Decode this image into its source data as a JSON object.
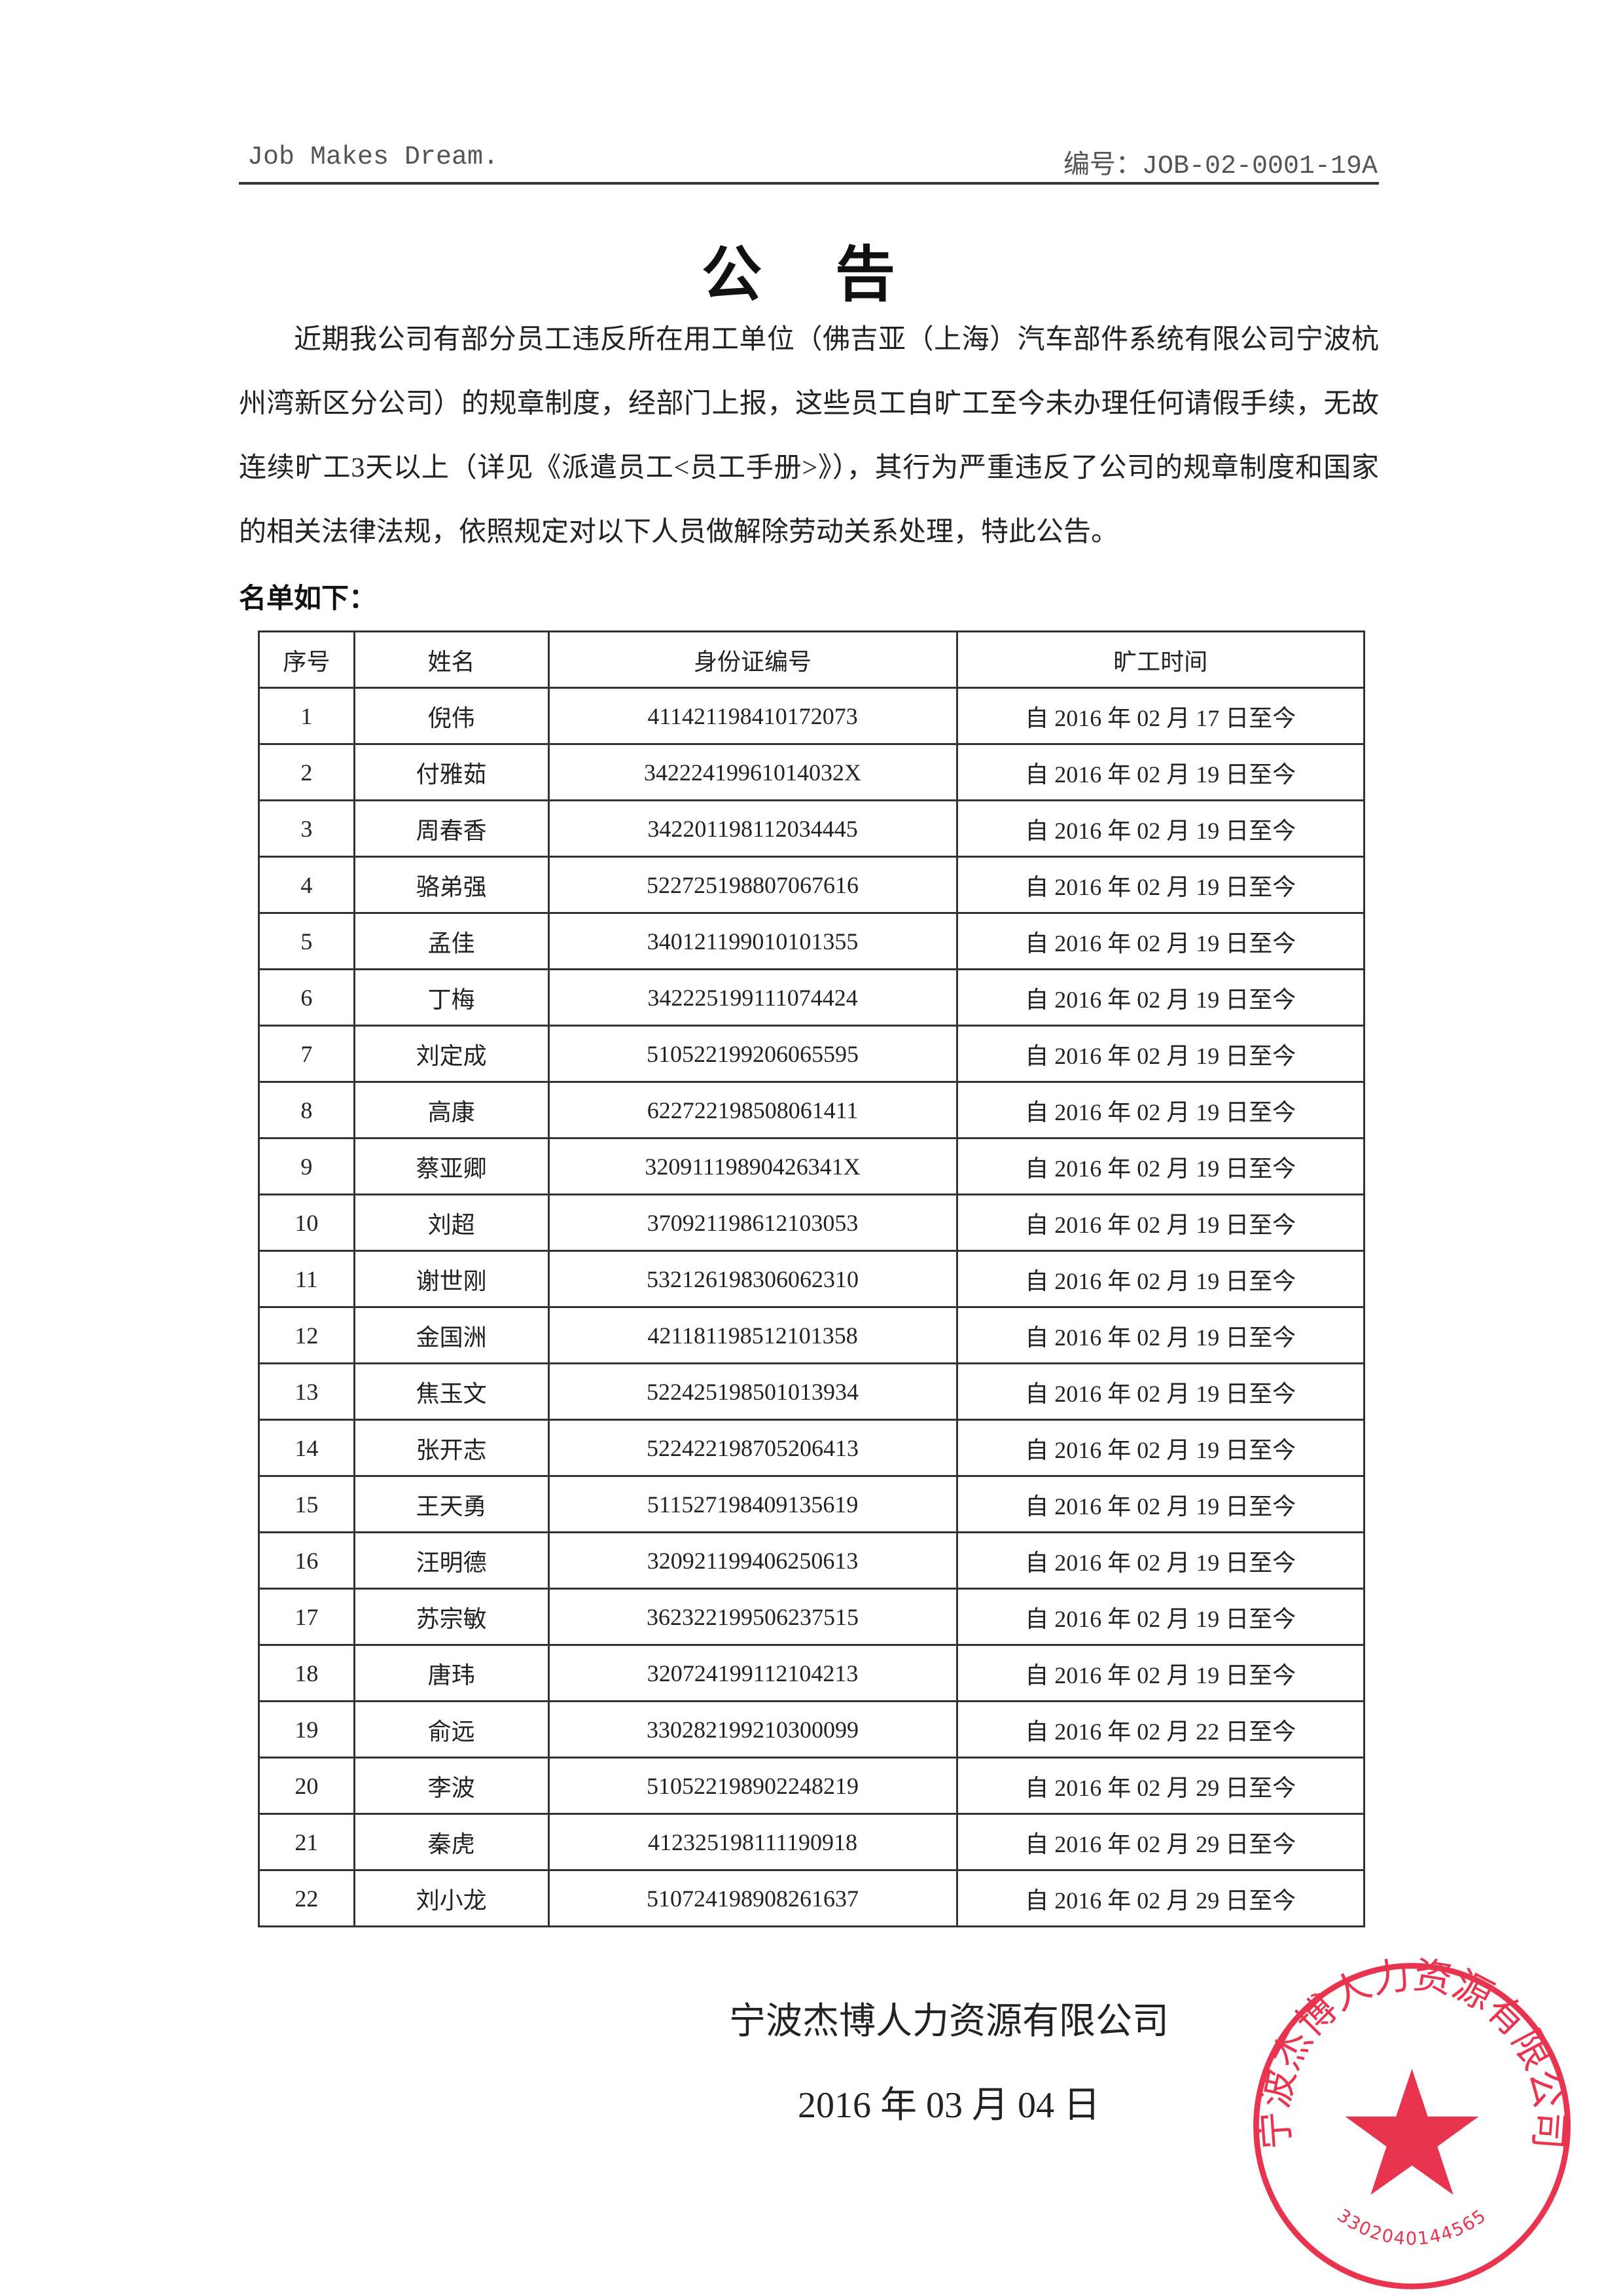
{
  "header": {
    "slogan": "Job Makes Dream.",
    "doc_number": "编号：JOB-02-0001-19A"
  },
  "title": "公 告",
  "body": "近期我公司有部分员工违反所在用工单位（佛吉亚（上海）汽车部件系统有限公司宁波杭州湾新区分公司）的规章制度，经部门上报，这些员工自旷工至今未办理任何请假手续，无故连续旷工3天以上（详见《派遣员工<员工手册>》），其行为严重违反了公司的规章制度和国家的相关法律法规，依照规定对以下人员做解除劳动关系处理，特此公告。",
  "list_label": "名单如下：",
  "table": {
    "columns": [
      "序号",
      "姓名",
      "身份证编号",
      "旷工时间"
    ],
    "rows": [
      [
        "1",
        "倪伟",
        "411421198410172073",
        "自 2016 年 02 月 17 日至今"
      ],
      [
        "2",
        "付雅茹",
        "34222419961014032X",
        "自 2016 年 02 月 19 日至今"
      ],
      [
        "3",
        "周春香",
        "342201198112034445",
        "自 2016 年 02 月 19 日至今"
      ],
      [
        "4",
        "骆弟强",
        "522725198807067616",
        "自 2016 年 02 月 19 日至今"
      ],
      [
        "5",
        "孟佳",
        "340121199010101355",
        "自 2016 年 02 月 19 日至今"
      ],
      [
        "6",
        "丁梅",
        "342225199111074424",
        "自 2016 年 02 月 19 日至今"
      ],
      [
        "7",
        "刘定成",
        "510522199206065595",
        "自 2016 年 02 月 19 日至今"
      ],
      [
        "8",
        "高康",
        "622722198508061411",
        "自 2016 年 02 月 19 日至今"
      ],
      [
        "9",
        "蔡亚卿",
        "32091119890426341X",
        "自 2016 年 02 月 19 日至今"
      ],
      [
        "10",
        "刘超",
        "370921198612103053",
        "自 2016 年 02 月 19 日至今"
      ],
      [
        "11",
        "谢世刚",
        "532126198306062310",
        "自 2016 年 02 月 19 日至今"
      ],
      [
        "12",
        "金国洲",
        "421181198512101358",
        "自 2016 年 02 月 19 日至今"
      ],
      [
        "13",
        "焦玉文",
        "522425198501013934",
        "自 2016 年 02 月 19 日至今"
      ],
      [
        "14",
        "张开志",
        "522422198705206413",
        "自 2016 年 02 月 19 日至今"
      ],
      [
        "15",
        "王天勇",
        "511527198409135619",
        "自 2016 年 02 月 19 日至今"
      ],
      [
        "16",
        "汪明德",
        "320921199406250613",
        "自 2016 年 02 月 19 日至今"
      ],
      [
        "17",
        "苏宗敏",
        "362322199506237515",
        "自 2016 年 02 月 19 日至今"
      ],
      [
        "18",
        "唐玮",
        "320724199112104213",
        "自 2016 年 02 月 19 日至今"
      ],
      [
        "19",
        "俞远",
        "330282199210300099",
        "自 2016 年 02 月 22 日至今"
      ],
      [
        "20",
        "李波",
        "510522198902248219",
        "自 2016 年 02 月 29 日至今"
      ],
      [
        "21",
        "秦虎",
        "412325198111190918",
        "自 2016 年 02 月 29 日至今"
      ],
      [
        "22",
        "刘小龙",
        "510724198908261637",
        "自 2016 年 02 月 29 日至今"
      ]
    ]
  },
  "signature": {
    "company": "宁波杰博人力资源有限公司",
    "date": "2016 年 03 月 04 日"
  },
  "stamp": {
    "text": "宁波杰博人力资源有限公司",
    "number": "3302040144565",
    "color": "#e8344f",
    "icon": "star-icon"
  }
}
